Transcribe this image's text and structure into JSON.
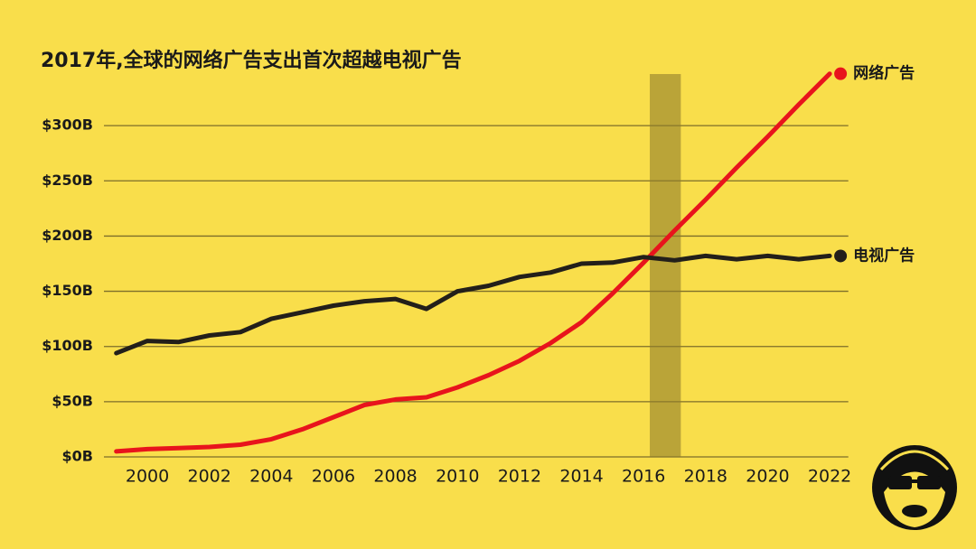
{
  "chart_data": {
    "type": "line",
    "title": "2017年,全球的网络广告支出首次超越电视广告",
    "x": [
      1999,
      2000,
      2001,
      2002,
      2003,
      2004,
      2005,
      2006,
      2007,
      2008,
      2009,
      2010,
      2011,
      2012,
      2013,
      2014,
      2015,
      2016,
      2017,
      2018,
      2019,
      2020,
      2021,
      2022
    ],
    "series": [
      {
        "name": "网络广告",
        "color": "#e8141c",
        "values": [
          5,
          7,
          8,
          9,
          11,
          16,
          25,
          36,
          47,
          52,
          54,
          63,
          74,
          87,
          103,
          122,
          148,
          176,
          205,
          233,
          262,
          290,
          319,
          347
        ]
      },
      {
        "name": "电视广告",
        "color": "#231f1a",
        "values": [
          94,
          105,
          104,
          110,
          113,
          125,
          131,
          137,
          141,
          143,
          134,
          150,
          155,
          163,
          167,
          175,
          176,
          181,
          178,
          182,
          179,
          182,
          179,
          182
        ]
      }
    ],
    "xlim": [
      1998.6,
      2022.6
    ],
    "xticks": [
      2000,
      2002,
      2004,
      2006,
      2008,
      2010,
      2012,
      2014,
      2016,
      2018,
      2020,
      2022
    ],
    "ylim": [
      0,
      350
    ],
    "yticks": [
      {
        "value": 0,
        "label": "$0B"
      },
      {
        "value": 50,
        "label": "$50B"
      },
      {
        "value": 100,
        "label": "$100B"
      },
      {
        "value": 150,
        "label": "$150B"
      },
      {
        "value": 200,
        "label": "$200B"
      },
      {
        "value": 250,
        "label": "$250B"
      },
      {
        "value": 300,
        "label": "$300B"
      }
    ],
    "highlight_x": [
      2016.2,
      2017.2
    ],
    "grid": true
  }
}
